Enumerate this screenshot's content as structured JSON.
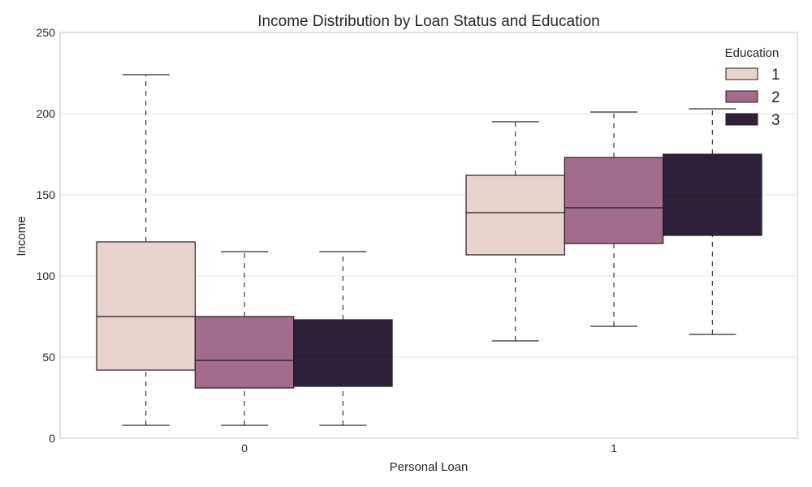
{
  "chart_data": {
    "type": "boxplot",
    "title": "Income Distribution by Loan Status and Education",
    "xlabel": "Personal Loan",
    "ylabel": "Income",
    "categories": [
      "0",
      "1"
    ],
    "ylim": [
      0,
      250
    ],
    "yticks": [
      0,
      50,
      100,
      150,
      200,
      250
    ],
    "grid": true,
    "legend": {
      "title": "Education",
      "placement": "top-right"
    },
    "series": [
      {
        "name": "1",
        "color": "#e8d3cf",
        "boxes": [
          {
            "category": "0",
            "whisker_low": 8,
            "q1": 42,
            "median": 75,
            "q3": 121,
            "whisker_high": 224
          },
          {
            "category": "1",
            "whisker_low": 60,
            "q1": 113,
            "median": 139,
            "q3": 162,
            "whisker_high": 195
          }
        ]
      },
      {
        "name": "2",
        "color": "#a26c8c",
        "boxes": [
          {
            "category": "0",
            "whisker_low": 8,
            "q1": 31,
            "median": 48,
            "q3": 75,
            "whisker_high": 115
          },
          {
            "category": "1",
            "whisker_low": 69,
            "q1": 120,
            "median": 142,
            "q3": 173,
            "whisker_high": 201
          }
        ]
      },
      {
        "name": "3",
        "color": "#2e2039",
        "boxes": [
          {
            "category": "0",
            "whisker_low": 8,
            "q1": 32,
            "median": 51,
            "q3": 73,
            "whisker_high": 115
          },
          {
            "category": "1",
            "whisker_low": 64,
            "q1": 125,
            "median": 149,
            "q3": 175,
            "whisker_high": 203
          }
        ]
      }
    ]
  }
}
